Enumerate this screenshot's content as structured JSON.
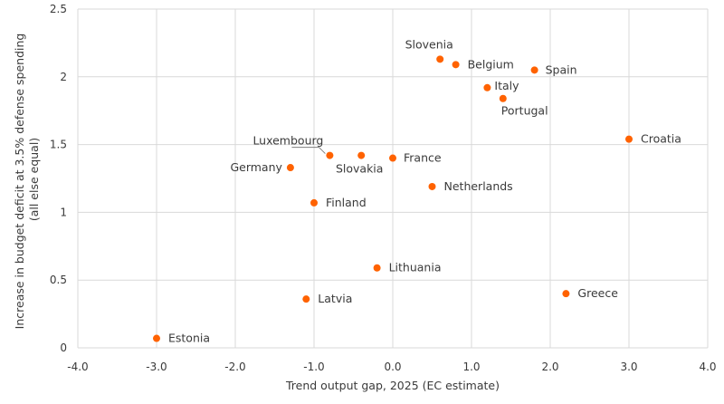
{
  "chart_data": {
    "type": "scatter",
    "xlabel": "Trend output gap, 2025 (EC estimate)",
    "ylabel_lines": [
      "Increase in budget deficit at 3.5% defense spending",
      "(all else equal)"
    ],
    "xlim": [
      -4,
      4
    ],
    "ylim": [
      0,
      2.5
    ],
    "x_ticks": [
      "-4.0",
      "-3.0",
      "-2.0",
      "-1.0",
      "0.0",
      "1.0",
      "2.0",
      "3.0",
      "4.0"
    ],
    "y_ticks": [
      "0",
      "0.5",
      "1",
      "1.5",
      "2",
      "2.5"
    ],
    "grid": true,
    "marker_color": "#ff6200",
    "points": [
      {
        "label": "Estonia",
        "x": -3.0,
        "y": 0.07
      },
      {
        "label": "Latvia",
        "x": -1.1,
        "y": 0.36
      },
      {
        "label": "Lithuania",
        "x": -0.2,
        "y": 0.59
      },
      {
        "label": "Greece",
        "x": 2.2,
        "y": 0.4
      },
      {
        "label": "Finland",
        "x": -1.0,
        "y": 1.07
      },
      {
        "label": "Netherlands",
        "x": 0.5,
        "y": 1.19
      },
      {
        "label": "Germany",
        "x": -1.3,
        "y": 1.33
      },
      {
        "label": "Luxembourg",
        "x": -0.8,
        "y": 1.42
      },
      {
        "label": "Slovakia",
        "x": -0.4,
        "y": 1.42
      },
      {
        "label": "France",
        "x": 0.0,
        "y": 1.4
      },
      {
        "label": "Croatia",
        "x": 3.0,
        "y": 1.54
      },
      {
        "label": "Portugal",
        "x": 1.4,
        "y": 1.84
      },
      {
        "label": "Italy",
        "x": 1.2,
        "y": 1.92
      },
      {
        "label": "Spain",
        "x": 1.8,
        "y": 2.05
      },
      {
        "label": "Belgium",
        "x": 0.8,
        "y": 2.09
      },
      {
        "label": "Slovenia",
        "x": 0.6,
        "y": 2.13
      }
    ]
  }
}
